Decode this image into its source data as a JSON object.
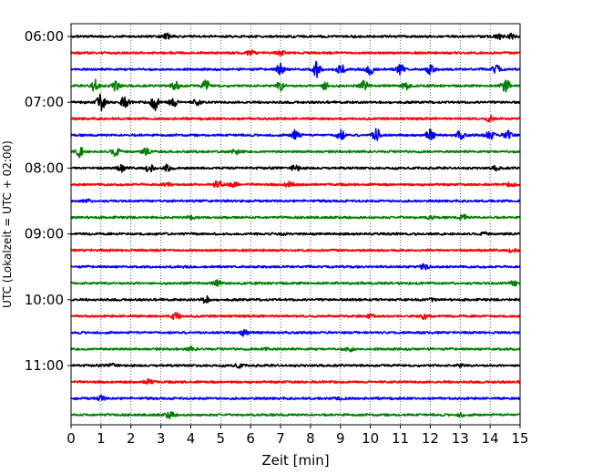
{
  "chart_data": {
    "type": "line",
    "subtype": "seismogram-helicorder",
    "title": "",
    "xlabel": "Zeit  [min]",
    "ylabel": "UTC (Lokalzeit = UTC + 02:00)",
    "xlim": [
      0,
      15
    ],
    "x_ticks": [
      "0",
      "1",
      "2",
      "3",
      "4",
      "5",
      "6",
      "7",
      "8",
      "9",
      "10",
      "11",
      "12",
      "13",
      "14",
      "15"
    ],
    "y_tick_labels": [
      "06:00",
      "07:00",
      "08:00",
      "09:00",
      "10:00",
      "11:00"
    ],
    "trace_minutes": 15,
    "grid": "vertical dotted at each minute",
    "trace_colors": [
      "#000000",
      "#ff0000",
      "#0000ff",
      "#008000"
    ],
    "traces": [
      {
        "start": "06:00",
        "events": [
          [
            3.2,
            0.25
          ],
          [
            14.3,
            0.25
          ],
          [
            14.7,
            0.3
          ]
        ]
      },
      {
        "start": "06:15",
        "events": [
          [
            6.0,
            0.25
          ],
          [
            7.0,
            0.2
          ]
        ]
      },
      {
        "start": "06:30",
        "events": [
          [
            7.0,
            0.6
          ],
          [
            8.2,
            0.8
          ],
          [
            9.0,
            0.55
          ],
          [
            10.0,
            0.6
          ],
          [
            11.0,
            0.55
          ],
          [
            12.0,
            0.5
          ],
          [
            14.2,
            0.45
          ]
        ]
      },
      {
        "start": "06:45",
        "events": [
          [
            0.8,
            0.7
          ],
          [
            1.5,
            0.55
          ],
          [
            3.5,
            0.5
          ],
          [
            4.5,
            0.55
          ],
          [
            7.0,
            0.5
          ],
          [
            8.5,
            0.45
          ],
          [
            9.8,
            0.55
          ],
          [
            11.2,
            0.5
          ],
          [
            14.5,
            0.9
          ]
        ]
      },
      {
        "start": "07:00",
        "events": [
          [
            1.0,
            0.9
          ],
          [
            1.8,
            0.6
          ],
          [
            2.8,
            0.85
          ],
          [
            3.4,
            0.6
          ],
          [
            4.2,
            0.3
          ]
        ]
      },
      {
        "start": "07:15",
        "events": [
          [
            14.0,
            0.3
          ]
        ]
      },
      {
        "start": "07:30",
        "events": [
          [
            7.5,
            0.7
          ],
          [
            9.0,
            0.55
          ],
          [
            10.2,
            0.7
          ],
          [
            12.0,
            0.6
          ],
          [
            13.0,
            0.45
          ],
          [
            14.0,
            0.5
          ],
          [
            14.6,
            0.55
          ]
        ]
      },
      {
        "start": "07:45",
        "events": [
          [
            0.3,
            0.55
          ],
          [
            1.5,
            0.5
          ],
          [
            2.5,
            0.3
          ],
          [
            5.5,
            0.25
          ]
        ]
      },
      {
        "start": "08:00",
        "events": [
          [
            1.7,
            0.35
          ],
          [
            2.6,
            0.45
          ],
          [
            3.2,
            0.3
          ],
          [
            7.5,
            0.35
          ],
          [
            14.2,
            0.2
          ]
        ]
      },
      {
        "start": "08:15",
        "events": [
          [
            3.2,
            0.25
          ],
          [
            4.9,
            0.45
          ],
          [
            5.4,
            0.55
          ],
          [
            7.3,
            0.35
          ],
          [
            14.7,
            0.2
          ]
        ]
      },
      {
        "start": "08:30",
        "events": [
          [
            0.5,
            0.2
          ]
        ]
      },
      {
        "start": "08:45",
        "events": [
          [
            4.0,
            0.15
          ],
          [
            12.0,
            0.15
          ],
          [
            13.1,
            0.3
          ]
        ]
      },
      {
        "start": "09:00",
        "events": [
          [
            7.0,
            0.15
          ],
          [
            13.8,
            0.15
          ]
        ]
      },
      {
        "start": "09:15",
        "events": [
          [
            14.7,
            0.2
          ]
        ]
      },
      {
        "start": "09:30",
        "events": [
          [
            11.8,
            0.25
          ]
        ]
      },
      {
        "start": "09:45",
        "events": [
          [
            4.9,
            0.3
          ],
          [
            14.8,
            0.25
          ]
        ]
      },
      {
        "start": "10:00",
        "events": [
          [
            4.5,
            0.35
          ],
          [
            12.0,
            0.15
          ]
        ]
      },
      {
        "start": "10:15",
        "events": [
          [
            3.5,
            0.45
          ],
          [
            10.0,
            0.2
          ],
          [
            11.8,
            0.3
          ]
        ]
      },
      {
        "start": "10:30",
        "events": [
          [
            5.8,
            0.35
          ]
        ]
      },
      {
        "start": "10:45",
        "events": [
          [
            4.0,
            0.2
          ],
          [
            6.5,
            0.15
          ],
          [
            9.3,
            0.3
          ]
        ]
      },
      {
        "start": "11:00",
        "events": [
          [
            1.4,
            0.2
          ],
          [
            5.6,
            0.2
          ],
          [
            13.0,
            0.15
          ]
        ]
      },
      {
        "start": "11:15",
        "events": [
          [
            2.6,
            0.4
          ]
        ]
      },
      {
        "start": "11:30",
        "events": [
          [
            1.0,
            0.25
          ],
          [
            9.0,
            0.15
          ]
        ]
      },
      {
        "start": "11:45",
        "events": [
          [
            3.3,
            0.35
          ],
          [
            13.0,
            0.15
          ]
        ]
      }
    ]
  }
}
